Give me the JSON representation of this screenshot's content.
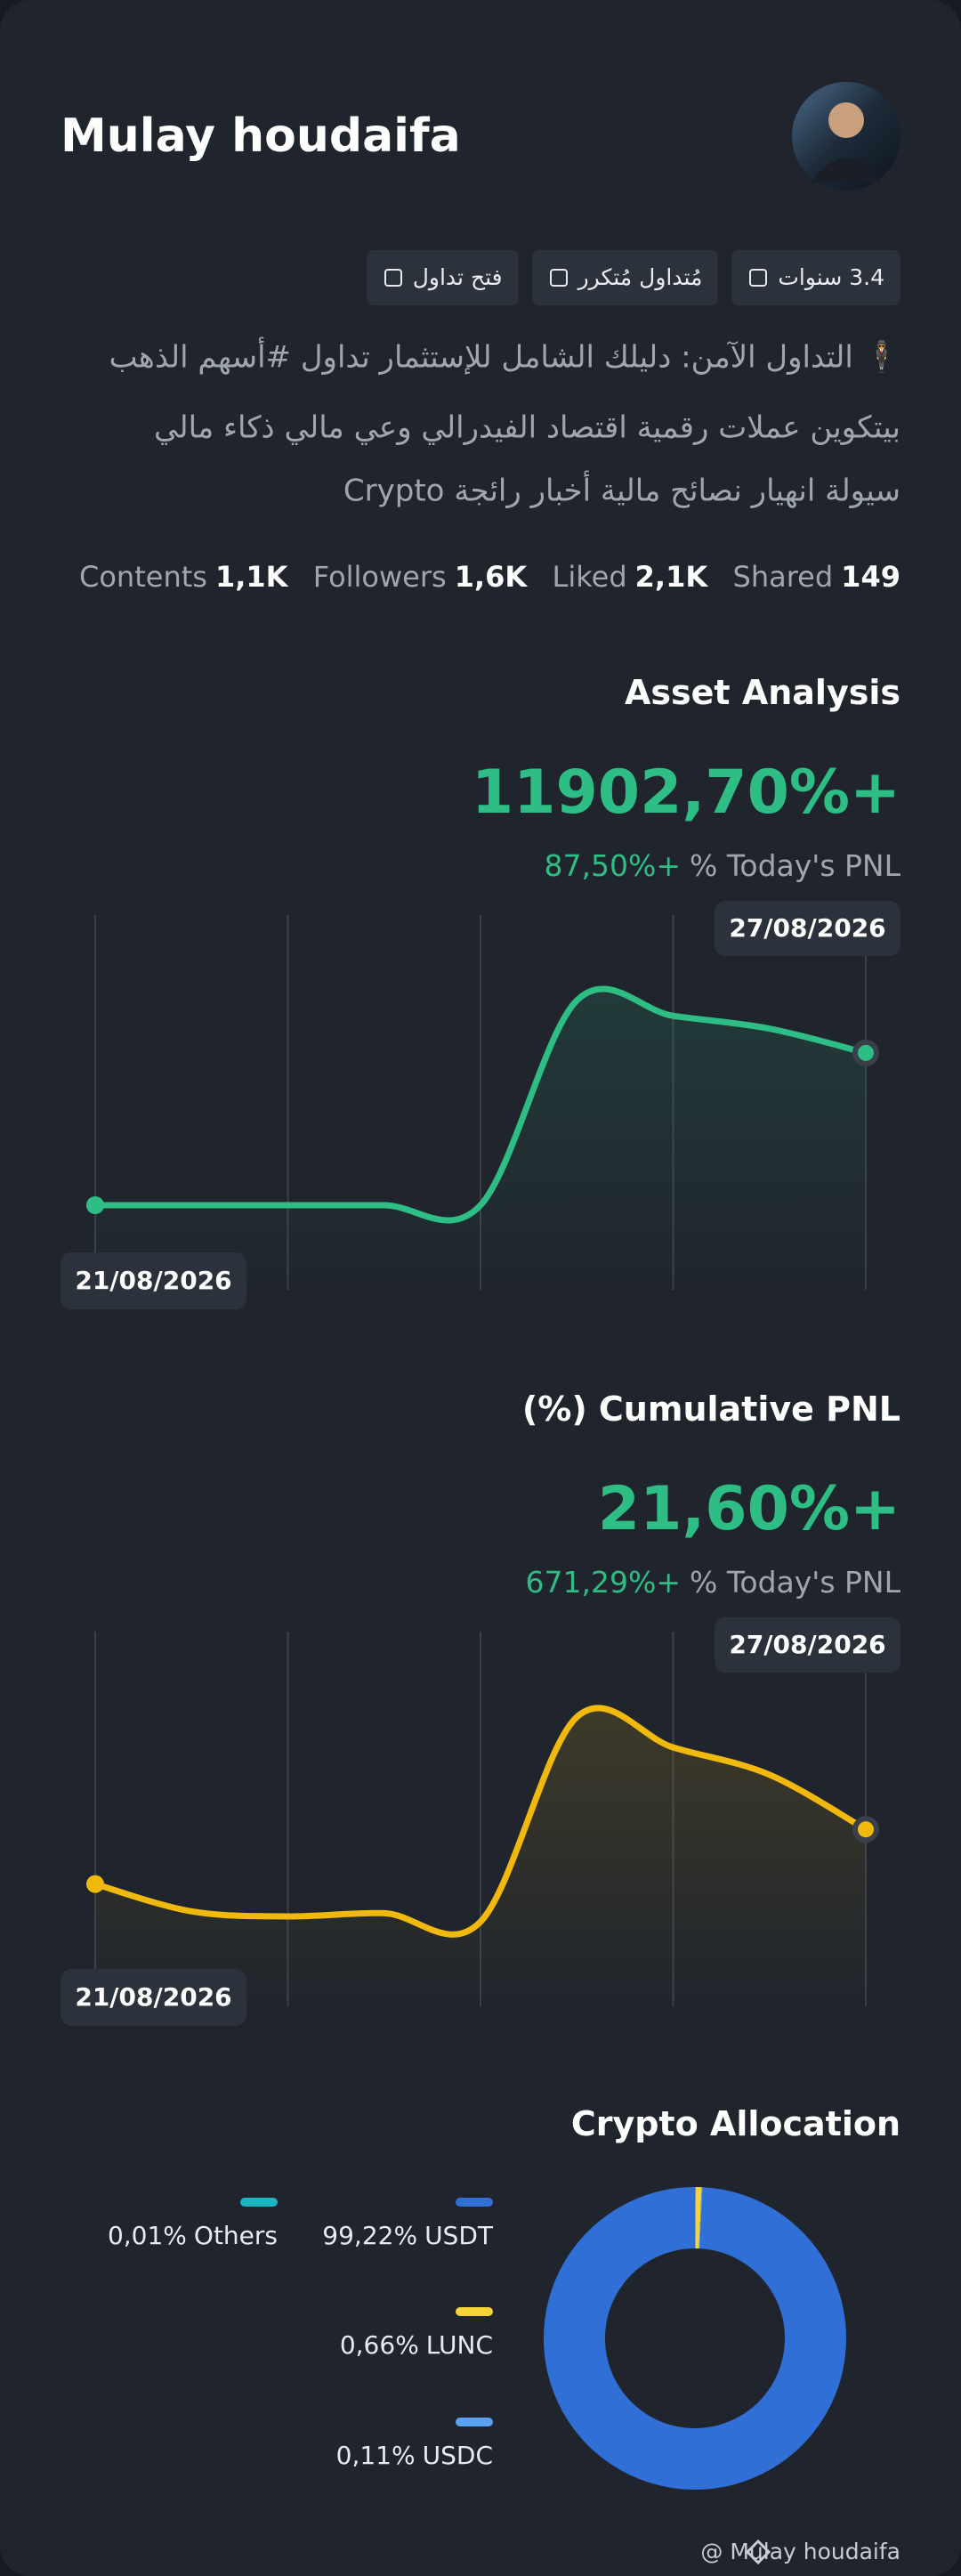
{
  "profile": {
    "name": "Mulay houdaifa",
    "badges": [
      "3.4 سنوات",
      "مُتداول مُتكرر",
      "فتح تداول"
    ],
    "bio": [
      "🕴 التداول الآمن: دليلك الشامل للإستثمار تداول #أسهم الذهب",
      "بيتكوين عملات رقمية اقتصاد الفيدرالي  وعي مالي ذكاء مالي",
      "سيولة انهيار نصائح مالية أخبار رائجة  Crypto"
    ],
    "stats": [
      {
        "label": "Contents",
        "value": "1,1K"
      },
      {
        "label": "Followers",
        "value": "1,6K"
      },
      {
        "label": "Liked",
        "value": "2,1K"
      },
      {
        "label": "Shared",
        "value": 149
      }
    ]
  },
  "chart_data": [
    {
      "type": "line",
      "title": "Asset Analysis",
      "headline": "11902,70%+",
      "today_pnl": "87,50%+",
      "today_pnl_label": "% Today's PNL",
      "x": [
        "21/08/2026",
        null,
        null,
        null,
        null,
        null,
        null,
        null,
        "27/08/2026"
      ],
      "color": "#2ebd85",
      "values": [
        0,
        0,
        0,
        0,
        0,
        16000,
        14800,
        13800,
        11902.7
      ]
    },
    {
      "type": "line",
      "title": "(%) Cumulative PNL",
      "headline": "21,60%+",
      "today_pnl": "671,29%+",
      "today_pnl_label": "% Today's PNL",
      "x": [
        "21/08/2026",
        null,
        null,
        null,
        null,
        null,
        null,
        null,
        "27/08/2026"
      ],
      "color": "#f0b90b",
      "values": [
        0,
        -10.8,
        -12.8,
        -11.5,
        -14.9,
        66,
        54,
        43.2,
        21.6
      ]
    },
    {
      "type": "pie",
      "title": "Crypto Allocation",
      "categories": [
        "USDT",
        "LUNC",
        "USDC",
        "Others"
      ],
      "values": [
        99.22,
        0.66,
        0.11,
        0.01
      ],
      "value_labels": [
        "99,22%",
        "0,66%",
        "0,11%",
        "0,01%"
      ],
      "colors": [
        "#2f6fd6",
        "#f5d33a",
        "#5ba3f0",
        "#1db5c0"
      ]
    }
  ],
  "watermark": "@ Mulay houdaifa"
}
